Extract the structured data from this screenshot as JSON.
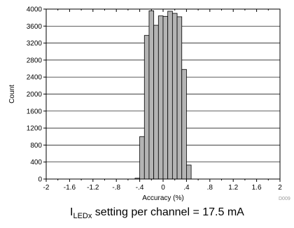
{
  "chart_data": {
    "type": "bar",
    "xlabel": "Accuracy (%)",
    "ylabel": "Count",
    "xlim": [
      -2,
      2
    ],
    "ylim": [
      0,
      4000
    ],
    "x_ticks": [
      "-2",
      "-1.6",
      "-1.2",
      "-.8",
      "-.4",
      "0",
      ".4",
      ".8",
      "1.2",
      "1.6",
      "2"
    ],
    "y_ticks": [
      "0",
      "400",
      "800",
      "1200",
      "1600",
      "2000",
      "2400",
      "2800",
      "3200",
      "3600",
      "4000"
    ],
    "bin_width": 0.08,
    "bin_start": [
      -0.48,
      -0.4,
      -0.32,
      -0.24,
      -0.16,
      -0.08,
      0.0,
      0.08,
      0.16,
      0.24,
      0.32,
      0.4,
      0.48,
      0.56,
      0.64
    ],
    "values": [
      20,
      1000,
      3380,
      3960,
      3620,
      3840,
      3830,
      3950,
      3900,
      3820,
      2580,
      330,
      0,
      0,
      0
    ],
    "grid": "horizontal",
    "bar_color": "#b4b4b4"
  },
  "annotation": "D009",
  "caption": {
    "main": "I",
    "sub": "LEDx",
    "rest": " setting per channel = 17.5 mA"
  }
}
